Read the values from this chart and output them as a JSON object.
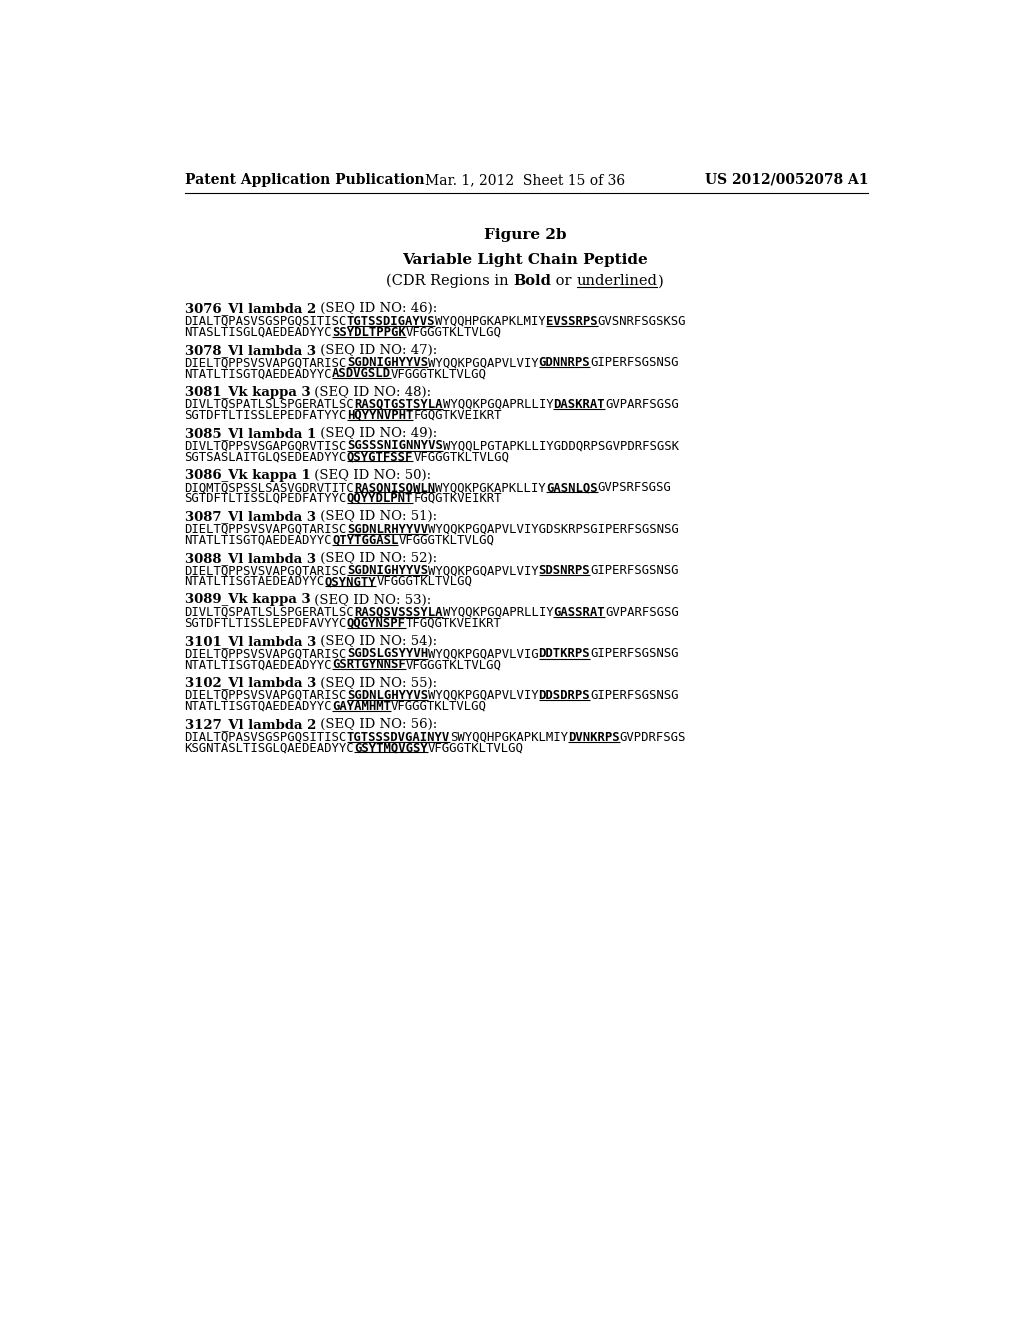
{
  "header_left": "Patent Application Publication",
  "header_middle": "Mar. 1, 2012  Sheet 15 of 36",
  "header_right": "US 2012/0052078 A1",
  "figure_title": "Figure 2b",
  "subtitle": "Variable Light Chain Peptide",
  "entries": [
    {
      "title_bold": "3076_Vl lambda 2",
      "title_normal": " (SEQ ID NO: 46):",
      "lines": [
        "DIALTQPASVSGSPGQSITISC|TGTSSDIGAYVS|WYQQHPGKAPKLMIY|EVSSRPS|GVSNRFSGSKSG",
        "NTASLTISGLQAEDEADYYC|SSYDLTPPGK|VFGGGTKLTVLGQ"
      ],
      "cdr_positions": [
        [
          [
            22,
            34
          ],
          [
            49,
            56
          ]
        ],
        [
          [
            20,
            30
          ]
        ]
      ]
    },
    {
      "title_bold": "3078_Vl lambda 3",
      "title_normal": " (SEQ ID NO: 47):",
      "lines": [
        "DIELTQPPSVSVAPGQTARISC|SGDNIGHYYVS|WYQQKPGQAPVLVIY|GDNNRPS|GIPERFSGSNSG",
        "NTATLTISGTQAEDEADYYC|ASDVGSLD|VFGGGTKLTVLGQ"
      ],
      "cdr_positions": [
        [
          [
            22,
            33
          ],
          [
            48,
            55
          ]
        ],
        [
          [
            20,
            28
          ]
        ]
      ]
    },
    {
      "title_bold": "3081_Vk kappa 3",
      "title_normal": " (SEQ ID NO: 48):",
      "lines": [
        "DIVLTQSPATLSLSPGERATLSC|RASQTGSTSYLA|WYQQKPGQAPRLLIY|DASKRAT|GVPARFSGSG",
        "SGTDFTLTISSLEPEDFATYYC|HQYYNVPHT|FGQGTKVEIKRT"
      ],
      "cdr_positions": [
        [
          [
            23,
            35
          ],
          [
            50,
            57
          ]
        ],
        [
          [
            22,
            31
          ]
        ]
      ]
    },
    {
      "title_bold": "3085_Vl lambda 1",
      "title_normal": " (SEQ ID NO: 49):",
      "lines": [
        "DIVLTQPPSVSGAPGQRVTISC|SGSSSNIGNNYVS|WYQQLPGTAPKLLIYGDDQRPSGVPDRFSGSK",
        "SGTSASLAITGLQSEDEADYYC|QSYGTFSSF|VFGGGTKLTVLGQ"
      ],
      "cdr_positions": [
        [
          [
            22,
            35
          ]
        ],
        [
          [
            22,
            31
          ]
        ]
      ]
    },
    {
      "title_bold": "3086_Vk kappa 1",
      "title_normal": " (SEQ ID NO: 50):",
      "lines": [
        "DIQMTQSPSSLSASVGDRVTITC|RASQNISQWLN|WYQQKPGKAPKLLIY|GASNLQS|GVPSRFSGSG",
        "SGTDFTLTISSLQPEDFATYYC|QQYYDLPNT|FGQGTKVEIKRT"
      ],
      "cdr_positions": [
        [
          [
            23,
            34
          ],
          [
            49,
            56
          ]
        ],
        [
          [
            22,
            31
          ]
        ]
      ]
    },
    {
      "title_bold": "3087_Vl lambda 3",
      "title_normal": " (SEQ ID NO: 51):",
      "lines": [
        "DIELTQPPSVSVAPGQTARISC|SGDNLRHYYVV|WYQQKPGQAPVLVIYGDSKRPSGIPERFSGSNSG",
        "NTATLTISGTQAEDEADYYC|QTYTGGASL|VFGGGTKLTVLGQ"
      ],
      "cdr_positions": [
        [
          [
            22,
            33
          ]
        ],
        [
          [
            20,
            29
          ]
        ]
      ]
    },
    {
      "title_bold": "3088_Vl lambda 3",
      "title_normal": " (SEQ ID NO: 52):",
      "lines": [
        "DIELTQPPSVSVAPGQTARISC|SGDNIGHYYVS|WYQQKPGQAPVLVIY|SDSNRPS|GIPERFSGSNSG",
        "NTATLTISGTAEDEADYYC|QSYNGTY|VFGGGTKLTVLGQ"
      ],
      "cdr_positions": [
        [
          [
            22,
            33
          ],
          [
            48,
            55
          ]
        ],
        [
          [
            19,
            26
          ]
        ]
      ]
    },
    {
      "title_bold": "3089_Vk kappa 3",
      "title_normal": " (SEQ ID NO: 53):",
      "lines": [
        "DIVLTQSPATLSLSPGERATLSC|RASQSVSSSYLA|WYQQKPGQAPRLLIY|GASSRAT|GVPARFSGSG",
        "SGTDFTLTISSLEPEDFAVYYC|QQGYNSPF|TFGQGTKVEIKRT"
      ],
      "cdr_positions": [
        [
          [
            23,
            35
          ],
          [
            50,
            57
          ]
        ],
        [
          [
            22,
            30
          ]
        ]
      ]
    },
    {
      "title_bold": "3101_Vl lambda 3",
      "title_normal": " (SEQ ID NO: 54):",
      "lines": [
        "DIELTQPPSVSVAPGQTARISC|SGDSLGSYYVH|WYQQKPGQAPVLVIG|DDTKRPS|GIPERFSGSNSG",
        "NTATLTISGTQAEDEADYYC|GSRTGYNNSF|VFGGGTKLTVLGQ"
      ],
      "cdr_positions": [
        [
          [
            22,
            33
          ],
          [
            48,
            55
          ]
        ],
        [
          [
            20,
            30
          ]
        ]
      ]
    },
    {
      "title_bold": "3102_Vl lambda 3",
      "title_normal": " (SEQ ID NO: 55):",
      "lines": [
        "DIELTQPPSVSVAPGQTARISC|SGDNLGHYYVS|WYQQKPGQAPVLVIY|DDSDRPS|GIPERFSGSNSG",
        "NTATLTISGTQAEDEADYYC|GAYAMHMT|VFGGGTKLTVLGQ"
      ],
      "cdr_positions": [
        [
          [
            22,
            33
          ],
          [
            48,
            55
          ]
        ],
        [
          [
            20,
            28
          ]
        ]
      ]
    },
    {
      "title_bold": "3127_Vl lambda 2",
      "title_normal": " (SEQ ID NO: 56):",
      "lines": [
        "DIALTQPASVSGSPGQSITISC|TGTSSSDVGAINYV|SWYQQHPGKAPKLMIY|DVNKRPS|GVPDRFSGS",
        "KSGNTASLTISGLQAEDEADYYC|GSYTMQVGSY|VFGGGTKLTVLGQ"
      ],
      "cdr_positions": [
        [
          [
            22,
            36
          ],
          [
            52,
            59
          ]
        ],
        [
          [
            23,
            33
          ]
        ]
      ]
    }
  ]
}
